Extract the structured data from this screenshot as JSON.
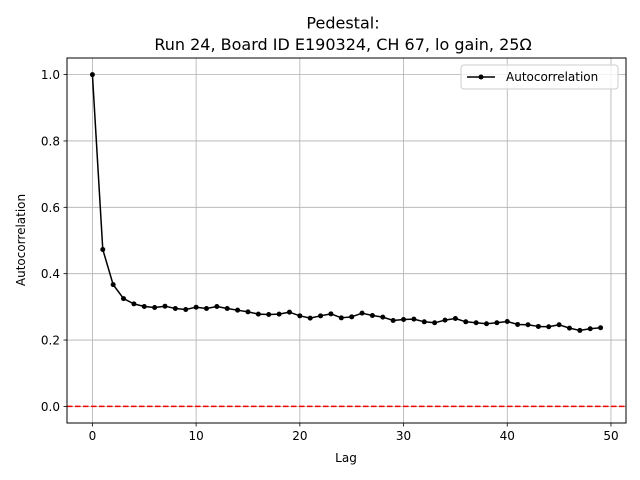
{
  "chart_data": {
    "type": "line",
    "title": [
      "Pedestal:",
      "Run 24, Board ID E190324, CH 67, lo gain, 25Ω"
    ],
    "xlabel": "Lag",
    "ylabel": "Autocorrelation",
    "xlim": [
      -2.45,
      51.45
    ],
    "ylim": [
      -0.05,
      1.05
    ],
    "xticks": [
      0,
      10,
      20,
      30,
      40,
      50
    ],
    "yticks": [
      0.0,
      0.2,
      0.4,
      0.6,
      0.8,
      1.0
    ],
    "xtick_labels": [
      "0",
      "10",
      "20",
      "30",
      "40",
      "50"
    ],
    "ytick_labels": [
      "0.0",
      "0.2",
      "0.4",
      "0.6",
      "0.8",
      "1.0"
    ],
    "grid": true,
    "legend_position": "top-right",
    "reference_line": {
      "y": 0,
      "color": "#ff0000",
      "style": "dashed"
    },
    "series": [
      {
        "name": "Autocorrelation",
        "color": "#000000",
        "marker": "dot",
        "x": [
          0,
          1,
          2,
          3,
          4,
          5,
          6,
          7,
          8,
          9,
          10,
          11,
          12,
          13,
          14,
          15,
          16,
          17,
          18,
          19,
          20,
          21,
          22,
          23,
          24,
          25,
          26,
          27,
          28,
          29,
          30,
          31,
          32,
          33,
          34,
          35,
          36,
          37,
          38,
          39,
          40,
          41,
          42,
          43,
          44,
          45,
          46,
          47,
          48,
          49
        ],
        "values": [
          1.0,
          0.473,
          0.367,
          0.325,
          0.309,
          0.301,
          0.298,
          0.302,
          0.295,
          0.292,
          0.299,
          0.295,
          0.301,
          0.295,
          0.29,
          0.285,
          0.278,
          0.277,
          0.278,
          0.284,
          0.273,
          0.266,
          0.273,
          0.279,
          0.267,
          0.27,
          0.281,
          0.274,
          0.269,
          0.259,
          0.262,
          0.263,
          0.255,
          0.252,
          0.26,
          0.265,
          0.255,
          0.252,
          0.249,
          0.252,
          0.256,
          0.247,
          0.246,
          0.241,
          0.24,
          0.246,
          0.236,
          0.229,
          0.234,
          0.237
        ]
      }
    ]
  }
}
